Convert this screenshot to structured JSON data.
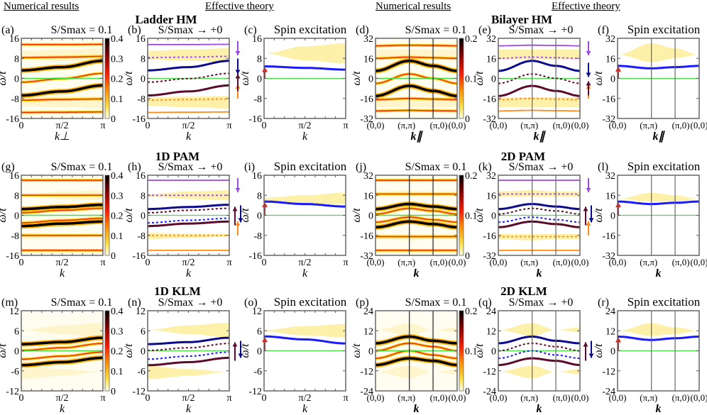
{
  "headers": {
    "numerical": "Numerical results",
    "effective": "Effective theory"
  },
  "colors": {
    "purple": "#9b4de0",
    "navy": "#0a0a8a",
    "blue": "#1a1aff",
    "maroon": "#5a0a2a",
    "orange": "#ff8a1a",
    "green": "#44dd44",
    "red": "#ff1111",
    "continuum": "#fdf0a8"
  },
  "panel_titles": {
    "numerical": "S/Smax = 0.1",
    "effective": "S/Smax → +0",
    "spin": "Spin excitation"
  },
  "models": [
    {
      "name": "Ladder HM",
      "dim": "1D",
      "ylim": [
        -16,
        16
      ],
      "yticks": [
        -16,
        -8,
        0,
        8,
        16
      ],
      "cbar_max": 0.4,
      "cbar_ticks": [
        0,
        0.1,
        0.2,
        0.3,
        0.4
      ],
      "xlabel": "k⊥",
      "xlabel_e": "k",
      "labels": [
        "(a)",
        "(b)",
        "(c)"
      ]
    },
    {
      "name": "Bilayer HM",
      "dim": "2D",
      "ylim": [
        -32,
        32
      ],
      "yticks": [
        -32,
        -16,
        0,
        16,
        32
      ],
      "cbar_max": 0.2,
      "cbar_ticks": [
        0,
        0.1,
        0.2
      ],
      "xlabel": "k∥",
      "xlabel_e": "k∥",
      "labels": [
        "(d)",
        "(e)",
        "(f)"
      ]
    },
    {
      "name": "1D PAM",
      "dim": "1D",
      "ylim": [
        -16,
        16
      ],
      "yticks": [
        -16,
        -8,
        0,
        8,
        16
      ],
      "cbar_max": 0.4,
      "cbar_ticks": [
        0,
        0.1,
        0.2,
        0.3,
        0.4
      ],
      "xlabel": "k",
      "xlabel_e": "k",
      "labels": [
        "(g)",
        "(h)",
        "(i)"
      ]
    },
    {
      "name": "2D PAM",
      "dim": "2D",
      "ylim": [
        -32,
        32
      ],
      "yticks": [
        -32,
        -16,
        0,
        16,
        32
      ],
      "cbar_max": 0.2,
      "cbar_ticks": [
        0,
        0.1,
        0.2
      ],
      "xlabel": "k",
      "xlabel_e": "k",
      "labels": [
        "(j)",
        "(k)",
        "(l)"
      ]
    },
    {
      "name": "1D KLM",
      "dim": "1D",
      "ylim": [
        -12,
        12
      ],
      "yticks": [
        -12,
        -6,
        0,
        6,
        12
      ],
      "cbar_max": 0.4,
      "cbar_ticks": [
        0,
        0.1,
        0.2,
        0.3,
        0.4
      ],
      "xlabel": "k",
      "xlabel_e": "k",
      "labels": [
        "(m)",
        "(n)",
        "(o)"
      ]
    },
    {
      "name": "2D KLM",
      "dim": "2D",
      "ylim": [
        -24,
        24
      ],
      "yticks": [
        -24,
        -12,
        0,
        12,
        24
      ],
      "cbar_max": 0.2,
      "cbar_ticks": [
        0,
        0.1,
        0.2
      ],
      "xlabel": "k",
      "xlabel_e": "k",
      "labels": [
        "(p)",
        "(q)",
        "(r)"
      ]
    }
  ],
  "xticks_1d": [
    "0",
    "π/2",
    "π"
  ],
  "xticks_2d": [
    "(0,0)",
    "(π,π)",
    "(π,0)",
    "(0,0)"
  ],
  "ylabel": "ω/t",
  "chart_data": [
    {
      "type": "line",
      "model": "Ladder HM",
      "x_path": [
        "0",
        "π/2",
        "π"
      ],
      "ylabel": "ω/t",
      "ylim": [
        -16,
        16
      ],
      "effective": {
        "upper_solid_purple": [
          13.5,
          13.5,
          13.6
        ],
        "upper_dotted_purple": [
          8.3,
          8.5,
          8.8
        ],
        "band_up_navy": [
          3.2,
          4.5,
          7.0
        ],
        "band_dotted_maroon": [
          -1.5,
          -0.1,
          2.0
        ],
        "band_lo_maroon": [
          -6.8,
          -5.2,
          -2.8
        ],
        "lower_dotted_orange": [
          -8.7,
          -8.4,
          -8.2
        ],
        "lower_solid_orange": [
          -13.6,
          -13.5,
          -13.4
        ],
        "continuum_upper": [
          [
            7.5,
            11.0
          ],
          [
            7.0,
            11.5
          ],
          [
            6.5,
            12.0
          ]
        ],
        "continuum_lower": [
          [
            -7.5,
            -11.0
          ],
          [
            -7.3,
            -11.5
          ],
          [
            -7.0,
            -12.0
          ]
        ]
      },
      "spin_excitation": {
        "magnon": [
          4.8,
          4.2,
          3.5
        ],
        "continuum": [
          [
            10,
            10
          ],
          [
            7.2,
            12.8
          ],
          [
            6,
            14
          ]
        ]
      }
    },
    {
      "type": "line",
      "model": "Bilayer HM",
      "x_path": [
        "(0,0)",
        "(π,π)",
        "(π,0)",
        "(0,0)"
      ],
      "ylabel": "ω/t",
      "ylim": [
        -32,
        32
      ],
      "effective": {
        "upper_solid_purple": [
          26,
          26.5,
          26.3,
          26
        ],
        "upper_dotted_purple": [
          16,
          17,
          16.5,
          16
        ],
        "band_up_navy": [
          6,
          14,
          10,
          6
        ],
        "band_dotted_maroon": [
          -4,
          3.5,
          0,
          -4
        ],
        "band_lo_maroon": [
          -14,
          -6,
          -10,
          -14
        ],
        "lower_dotted_orange": [
          -17,
          -16,
          -16.5,
          -17
        ],
        "lower_solid_orange": [
          -26,
          -25.5,
          -25.8,
          -26
        ],
        "continuum_upper": [
          [
            15,
            23
          ],
          [
            15,
            23
          ],
          [
            15,
            23
          ],
          [
            15,
            23
          ]
        ],
        "continuum_lower": [
          [
            -15,
            -23
          ],
          [
            -15,
            -23
          ],
          [
            -15,
            -23
          ],
          [
            -15,
            -23
          ]
        ]
      },
      "spin_excitation": {
        "magnon": [
          10,
          8,
          9,
          10
        ],
        "continuum": [
          [
            19,
            19
          ],
          [
            13,
            28
          ],
          [
            16,
            24
          ],
          [
            19,
            19
          ]
        ]
      }
    },
    {
      "type": "line",
      "model": "1D PAM",
      "x_path": [
        "0",
        "π/2",
        "π"
      ],
      "ylabel": "ω/t",
      "ylim": [
        -16,
        16
      ],
      "effective": {
        "upper_solid_purple": [
          14,
          14,
          14
        ],
        "upper_dotted_purple": [
          8,
          8,
          8
        ],
        "band_up_navy": [
          2.5,
          3.3,
          4.2
        ],
        "band_dotted_maroon": [
          1.0,
          2.0,
          2.8
        ],
        "band_dotted_navy": [
          -3.0,
          -2.0,
          -1.2
        ],
        "band_lo_maroon": [
          -4.3,
          -3.3,
          -2.5
        ],
        "lower_dotted_orange": [
          -8,
          -8,
          -8
        ],
        "lower_solid_orange": [
          -14,
          -14,
          -14
        ],
        "continuum_upper": [
          [
            7.5,
            8.5
          ],
          [
            6.5,
            9.5
          ],
          [
            6.0,
            10.0
          ]
        ],
        "continuum_lower": [
          [
            -7.0,
            -9.5
          ],
          [
            -7.3,
            -9.0
          ],
          [
            -7.5,
            -8.5
          ]
        ]
      },
      "spin_excitation": {
        "magnon": [
          5.5,
          4.5,
          3.5
        ],
        "continuum": [
          [
            5,
            7
          ],
          [
            4.5,
            8
          ],
          [
            4.5,
            9
          ]
        ]
      }
    },
    {
      "type": "line",
      "model": "2D PAM",
      "x_path": [
        "(0,0)",
        "(π,π)",
        "(π,0)",
        "(0,0)"
      ],
      "ylabel": "ω/t",
      "ylim": [
        -32,
        32
      ],
      "effective": {
        "upper_solid_purple": [
          28,
          28,
          28,
          28
        ],
        "upper_dotted_purple": [
          17,
          17,
          17,
          17
        ],
        "band_up_navy": [
          5,
          9,
          7,
          5
        ],
        "band_dotted_maroon": [
          1,
          5.5,
          3.5,
          1
        ],
        "band_dotted_navy": [
          -5.5,
          -1.5,
          -3.5,
          -5.5
        ],
        "band_lo_maroon": [
          -9.5,
          -5,
          -7,
          -9.5
        ],
        "lower_dotted_orange": [
          -17,
          -17,
          -17,
          -17
        ],
        "lower_solid_orange": [
          -28,
          -28,
          -28,
          -28
        ],
        "continuum_upper": [
          [
            15,
            19
          ],
          [
            15,
            20
          ],
          [
            15,
            19
          ],
          [
            15,
            19
          ]
        ],
        "continuum_lower": [
          [
            -15,
            -19
          ],
          [
            -15,
            -20
          ],
          [
            -15,
            -19
          ],
          [
            -15,
            -19
          ]
        ]
      },
      "spin_excitation": {
        "magnon": [
          11,
          9,
          10,
          11
        ],
        "continuum": [
          [
            13,
            13
          ],
          [
            11,
            18
          ],
          [
            11,
            16
          ],
          [
            13,
            13
          ]
        ]
      }
    },
    {
      "type": "line",
      "model": "1D KLM",
      "x_path": [
        "0",
        "π/2",
        "π"
      ],
      "ylabel": "ω/t",
      "ylim": [
        -12,
        12
      ],
      "effective": {
        "band_up_navy": [
          2.0,
          2.6,
          3.9
        ],
        "band_dotted_maroon": [
          0.1,
          0.9,
          2.2
        ],
        "band_dotted_navy": [
          -2.5,
          -1.6,
          -0.4
        ],
        "band_lo_maroon": [
          -4.3,
          -3.4,
          -2.1
        ],
        "continuum_upper": [
          [
            6.3,
            6.3
          ],
          [
            5,
            7.6
          ],
          [
            4,
            8.4
          ]
        ],
        "continuum_lower": [
          [
            -4.5,
            -8.5
          ],
          [
            -5.5,
            -7.5
          ],
          [
            -6.3,
            -6.3
          ]
        ]
      },
      "spin_excitation": {
        "magnon": [
          4.3,
          3.4,
          2.2
        ],
        "continuum": [
          [
            5.8,
            6.2
          ],
          [
            4.6,
            7.4
          ],
          [
            4,
            8
          ]
        ]
      }
    },
    {
      "type": "line",
      "model": "2D KLM",
      "x_path": [
        "(0,0)",
        "(π,π)",
        "(π,0)",
        "(0,0)"
      ],
      "ylabel": "ω/t",
      "ylim": [
        -24,
        24
      ],
      "effective": {
        "band_up_navy": [
          4.5,
          8.5,
          6,
          4.5
        ],
        "band_dotted_maroon": [
          0,
          4.5,
          2.5,
          0
        ],
        "band_dotted_navy": [
          -4.5,
          0,
          -2.5,
          -4.5
        ],
        "band_lo_maroon": [
          -8.5,
          -4.5,
          -6,
          -8.5
        ],
        "continuum_upper": [
          [
            12.5,
            12.5
          ],
          [
            9,
            16.5
          ],
          [
            12.5,
            12.5
          ],
          [
            11,
            14
          ]
        ],
        "continuum_lower": [
          [
            -12.5,
            -12.5
          ],
          [
            -9,
            -16.5
          ],
          [
            -12.5,
            -12.5
          ],
          [
            -11,
            -14
          ]
        ]
      },
      "spin_excitation": {
        "magnon": [
          8.5,
          6.5,
          7.5,
          8.5
        ],
        "continuum": [
          [
            12,
            12
          ],
          [
            9,
            16.5
          ],
          [
            10,
            14
          ],
          [
            12,
            12
          ]
        ]
      }
    }
  ]
}
